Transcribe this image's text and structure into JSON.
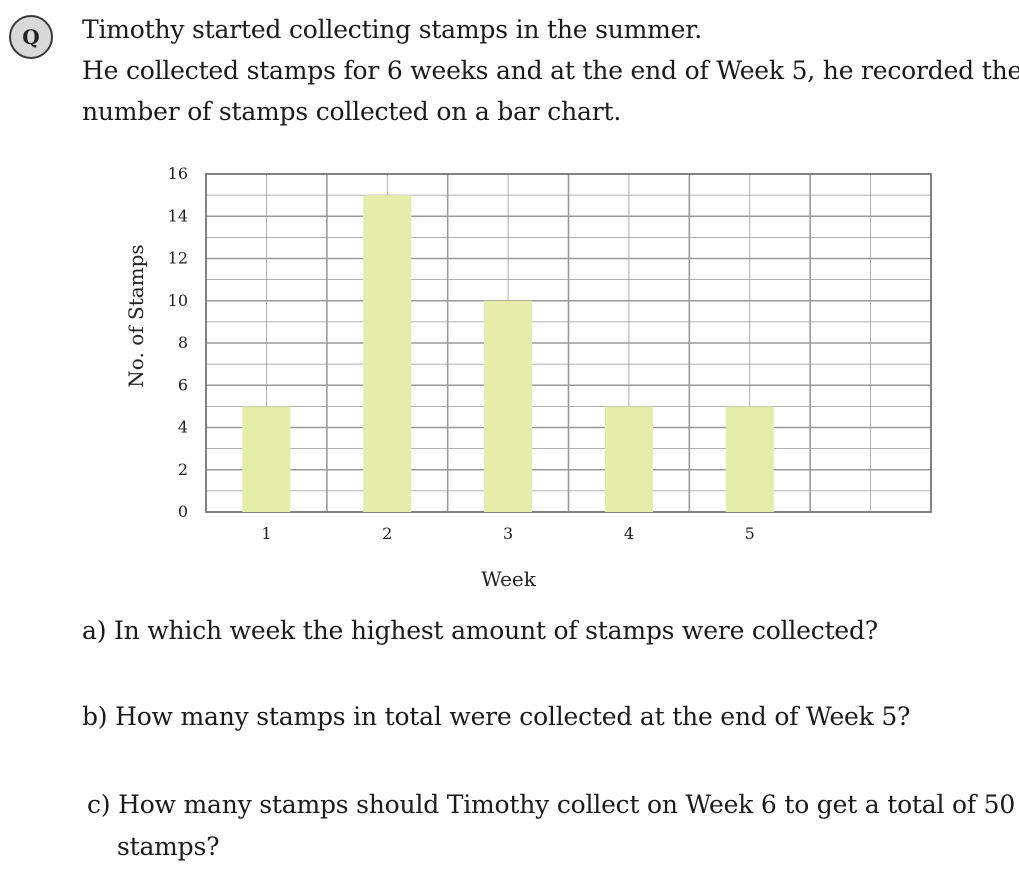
{
  "badge": {
    "label": "Q"
  },
  "question": {
    "lines": [
      "Timothy started collecting stamps in the summer.",
      "He collected stamps for 6 weeks and at the end of Week 5, he recorded the",
      "number of stamps collected on a bar chart."
    ]
  },
  "chart_data": {
    "type": "bar",
    "categories": [
      "1",
      "2",
      "3",
      "4",
      "5",
      ""
    ],
    "values": [
      5,
      15,
      10,
      5,
      5,
      null
    ],
    "title": "",
    "xlabel": "Week",
    "ylabel": "No. of Stamps",
    "ylim": [
      0,
      16
    ],
    "yticks": [
      "0",
      "2",
      "4",
      "6",
      "8",
      "10",
      "12",
      "14",
      "16"
    ],
    "grid": true,
    "bar_color": "#e6edaa",
    "grid_color": "#9a9a9a"
  },
  "parts": {
    "a": "a) In which week the highest amount of stamps were collected?",
    "b": "b) How many stamps in total were collected at the end of Week 5?",
    "c_line1": "c) How many stamps should Timothy collect on Week 6 to get a total of 50",
    "c_line2": "stamps?"
  }
}
